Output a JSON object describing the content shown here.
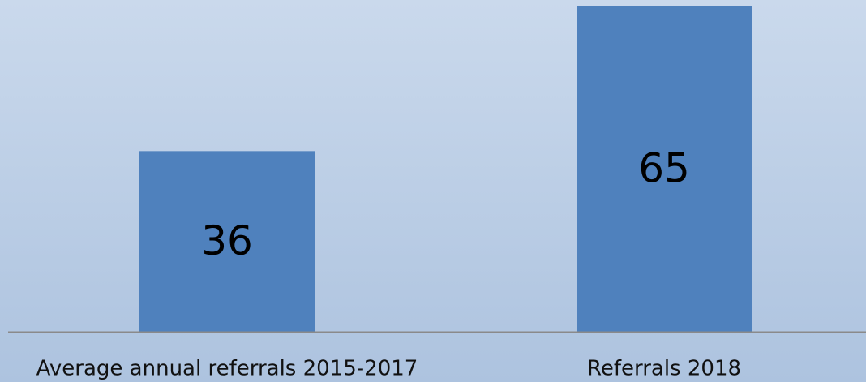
{
  "chart_data": {
    "type": "bar",
    "categories": [
      "Average annual referrals 2015-2017",
      "Referrals 2018"
    ],
    "values": [
      36,
      65
    ],
    "color": "#4f81bd"
  }
}
